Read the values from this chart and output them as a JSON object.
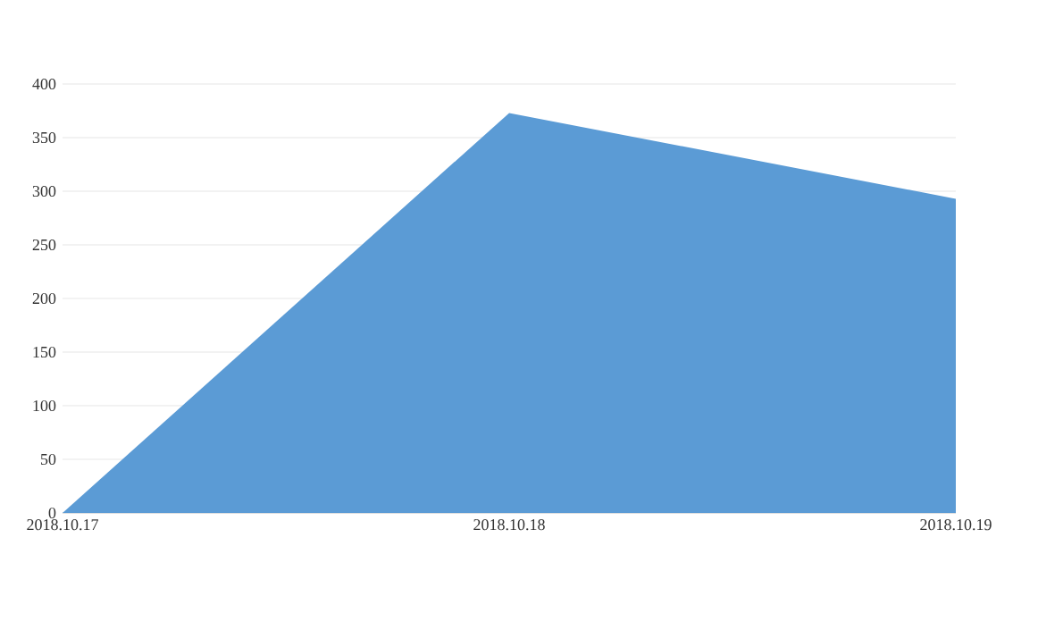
{
  "chart_data": {
    "type": "area",
    "categories": [
      "2018.10.17",
      "2018.10.18",
      "2018.10.19"
    ],
    "values": [
      0,
      373,
      293
    ],
    "color": "#5b9bd5",
    "ylim": [
      0,
      400
    ],
    "yticks": [
      0,
      50,
      100,
      150,
      200,
      250,
      300,
      350,
      400
    ],
    "grid": "y"
  }
}
